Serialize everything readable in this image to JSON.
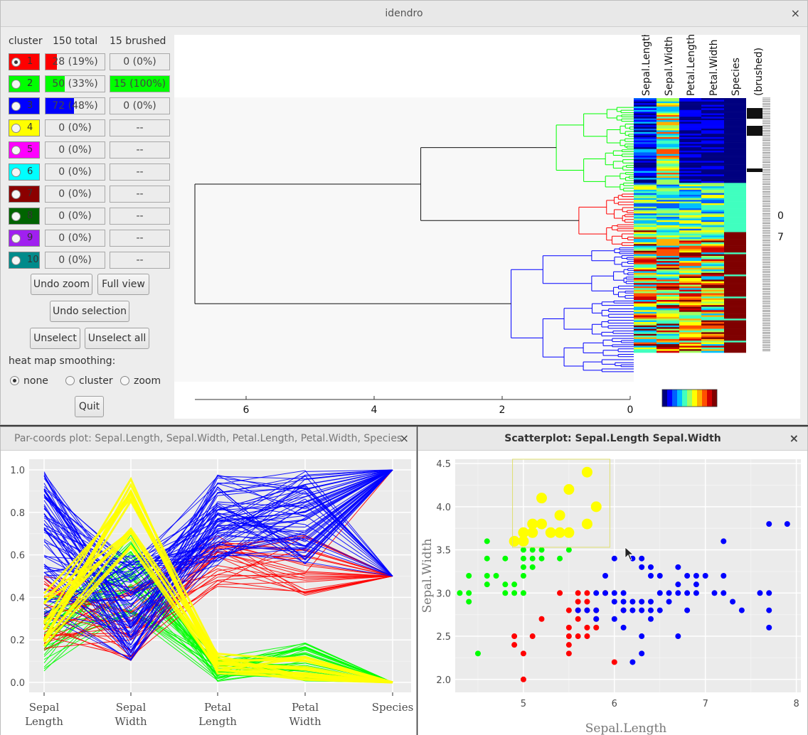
{
  "idendro": {
    "title": "idendro",
    "close": "×",
    "headers": {
      "cluster": "cluster",
      "total": "150 total",
      "brushed": "15 brushed"
    },
    "clusters": [
      {
        "num": "1",
        "color": "#ff0000",
        "total": "28 (19%)",
        "total_frac": 0.19,
        "brushed": "0 (0%)",
        "brushed_frac": 0,
        "selected": true
      },
      {
        "num": "2",
        "color": "#00ff00",
        "total": "50 (33%)",
        "total_frac": 0.33,
        "brushed": "15 (100%)",
        "brushed_frac": 1.0,
        "selected": false
      },
      {
        "num": "3",
        "color": "#0000ff",
        "total": "72 (48%)",
        "total_frac": 0.48,
        "brushed": "0 (0%)",
        "brushed_frac": 0,
        "selected": false
      },
      {
        "num": "4",
        "color": "#ffff00",
        "total": "0 (0%)",
        "total_frac": 0,
        "brushed": "--",
        "brushed_frac": 0,
        "selected": false
      },
      {
        "num": "5",
        "color": "#ff00ff",
        "total": "0 (0%)",
        "total_frac": 0,
        "brushed": "--",
        "brushed_frac": 0,
        "selected": false
      },
      {
        "num": "6",
        "color": "#00ffff",
        "total": "0 (0%)",
        "total_frac": 0,
        "brushed": "--",
        "brushed_frac": 0,
        "selected": false
      },
      {
        "num": "7",
        "color": "#8b0000",
        "total": "0 (0%)",
        "total_frac": 0,
        "brushed": "--",
        "brushed_frac": 0,
        "selected": false
      },
      {
        "num": "8",
        "color": "#006400",
        "total": "0 (0%)",
        "total_frac": 0,
        "brushed": "--",
        "brushed_frac": 0,
        "selected": false
      },
      {
        "num": "9",
        "color": "#a020f0",
        "total": "0 (0%)",
        "total_frac": 0,
        "brushed": "--",
        "brushed_frac": 0,
        "selected": false
      },
      {
        "num": "10",
        "color": "#008b8b",
        "total": "0 (0%)",
        "total_frac": 0,
        "brushed": "--",
        "brushed_frac": 0,
        "selected": false
      }
    ],
    "buttons": {
      "undo_zoom": "Undo zoom",
      "full_view": "Full view",
      "undo_selection": "Undo selection",
      "unselect": "Unselect",
      "unselect_all": "Unselect all",
      "quit": "Quit"
    },
    "smoothing": {
      "label": "heat map smoothing:",
      "options": [
        "none",
        "cluster",
        "zoom"
      ],
      "selected": "none"
    },
    "heatmap_columns": [
      "Sepal.Length",
      "Sepal.Width",
      "Petal.Length",
      "Petal.Width",
      "Species",
      "(brushed)"
    ],
    "axis_ticks": [
      "6",
      "4",
      "2",
      "0"
    ],
    "side_labels": [
      "0",
      "7"
    ]
  },
  "parcoords": {
    "title": "Par-coords plot: Sepal.Length, Sepal.Width, Petal.Length, Petal.Width, Species",
    "close": "×",
    "yticks": [
      "1.0",
      "0.8",
      "0.6",
      "0.4",
      "0.2",
      "0.0"
    ],
    "axes": [
      [
        "Sepal",
        "Length"
      ],
      [
        "Sepal",
        "Width"
      ],
      [
        "Petal",
        "Length"
      ],
      [
        "Petal",
        "Width"
      ],
      [
        "Species",
        ""
      ]
    ]
  },
  "scatter": {
    "title": "Scatterplot: Sepal.Length Sepal.Width",
    "close": "×",
    "xlabel": "Sepal.Length",
    "ylabel": "Sepal.Width",
    "xticks": [
      "5",
      "6",
      "7",
      "8"
    ],
    "yticks": [
      "4.5",
      "4.0",
      "3.5",
      "3.0",
      "2.5",
      "2.0"
    ]
  },
  "colors": {
    "cluster1": "#ff0000",
    "cluster2": "#00ff00",
    "cluster3": "#0000ff",
    "brushed": "#ffff00",
    "plotbg": "#ebebeb"
  },
  "chart_data": [
    {
      "type": "scatter",
      "title": "Scatterplot: Sepal.Length Sepal.Width",
      "xlabel": "Sepal.Length",
      "ylabel": "Sepal.Width",
      "xlim": [
        4.25,
        8.05
      ],
      "ylim": [
        1.85,
        4.55
      ],
      "grid": true,
      "series": [
        {
          "color": "#00ff00",
          "points": [
            [
              4.3,
              3.0
            ],
            [
              4.4,
              3.2
            ],
            [
              4.4,
              3.0
            ],
            [
              4.4,
              2.9
            ],
            [
              4.5,
              2.3
            ],
            [
              4.6,
              3.6
            ],
            [
              4.6,
              3.4
            ],
            [
              4.6,
              3.2
            ],
            [
              4.6,
              3.1
            ],
            [
              4.7,
              3.2
            ],
            [
              4.8,
              3.4
            ],
            [
              4.8,
              3.1
            ],
            [
              4.8,
              3.0
            ],
            [
              4.9,
              3.1
            ],
            [
              4.9,
              3.0
            ],
            [
              5.0,
              3.5
            ],
            [
              5.0,
              3.4
            ],
            [
              5.0,
              3.3
            ],
            [
              5.0,
              3.2
            ],
            [
              5.0,
              3.0
            ],
            [
              5.1,
              3.5
            ],
            [
              5.1,
              3.4
            ],
            [
              5.1,
              3.3
            ],
            [
              5.2,
              3.5
            ],
            [
              5.2,
              3.4
            ],
            [
              5.3,
              3.7
            ],
            [
              5.4,
              3.4
            ],
            [
              5.5,
              3.5
            ],
            [
              5.0,
              3.6
            ],
            [
              4.9,
              3.6
            ]
          ]
        },
        {
          "color": "#ff0000",
          "points": [
            [
              5.0,
              2.0
            ],
            [
              4.9,
              2.5
            ],
            [
              5.0,
              2.3
            ],
            [
              4.9,
              2.4
            ],
            [
              5.1,
              2.5
            ],
            [
              5.2,
              2.7
            ],
            [
              5.4,
              3.0
            ],
            [
              5.5,
              2.6
            ],
            [
              5.5,
              2.5
            ],
            [
              5.5,
              2.4
            ],
            [
              5.5,
              2.3
            ],
            [
              5.6,
              2.5
            ],
            [
              5.6,
              2.9
            ],
            [
              5.6,
              3.0
            ],
            [
              5.7,
              2.8
            ],
            [
              5.7,
              2.6
            ],
            [
              5.7,
              3.0
            ],
            [
              5.7,
              2.9
            ],
            [
              5.8,
              2.7
            ],
            [
              5.8,
              2.6
            ],
            [
              5.9,
              3.0
            ],
            [
              6.0,
              2.2
            ],
            [
              6.1,
              2.8
            ],
            [
              5.6,
              2.7
            ],
            [
              5.8,
              2.8
            ],
            [
              5.7,
              2.5
            ],
            [
              5.5,
              2.8
            ],
            [
              5.6,
              2.8
            ]
          ]
        },
        {
          "color": "#0000ff",
          "points": [
            [
              5.6,
              2.8
            ],
            [
              5.7,
              2.8
            ],
            [
              5.8,
              2.7
            ],
            [
              5.8,
              2.8
            ],
            [
              5.9,
              3.2
            ],
            [
              6.0,
              3.4
            ],
            [
              6.0,
              3.0
            ],
            [
              6.0,
              2.9
            ],
            [
              6.1,
              3.0
            ],
            [
              6.1,
              2.9
            ],
            [
              6.1,
              2.6
            ],
            [
              6.2,
              3.4
            ],
            [
              6.2,
              2.9
            ],
            [
              6.2,
              2.8
            ],
            [
              6.2,
              2.2
            ],
            [
              6.3,
              3.4
            ],
            [
              6.3,
              3.3
            ],
            [
              6.3,
              2.9
            ],
            [
              6.3,
              2.8
            ],
            [
              6.3,
              2.5
            ],
            [
              6.3,
              2.3
            ],
            [
              6.4,
              3.3
            ],
            [
              6.4,
              3.2
            ],
            [
              6.4,
              2.9
            ],
            [
              6.4,
              2.8
            ],
            [
              6.4,
              2.7
            ],
            [
              6.5,
              3.2
            ],
            [
              6.5,
              3.0
            ],
            [
              6.5,
              2.8
            ],
            [
              6.6,
              3.0
            ],
            [
              6.7,
              3.3
            ],
            [
              6.7,
              3.1
            ],
            [
              6.7,
              3.0
            ],
            [
              6.7,
              2.5
            ],
            [
              6.8,
              3.2
            ],
            [
              6.8,
              3.0
            ],
            [
              6.8,
              2.8
            ],
            [
              6.9,
              3.2
            ],
            [
              6.9,
              3.1
            ],
            [
              7.0,
              3.2
            ],
            [
              7.1,
              3.0
            ],
            [
              7.2,
              3.6
            ],
            [
              7.2,
              3.2
            ],
            [
              7.2,
              3.0
            ],
            [
              7.3,
              2.9
            ],
            [
              7.4,
              2.8
            ],
            [
              7.6,
              3.0
            ],
            [
              7.7,
              3.8
            ],
            [
              7.7,
              3.0
            ],
            [
              7.7,
              2.8
            ],
            [
              7.7,
              2.6
            ],
            [
              7.9,
              3.8
            ],
            [
              6.1,
              2.8
            ],
            [
              5.9,
              3.0
            ],
            [
              6.0,
              2.7
            ],
            [
              6.9,
              3.0
            ],
            [
              6.6,
              2.9
            ],
            [
              5.8,
              3.0
            ]
          ]
        },
        {
          "color": "#ffff00",
          "brushed": true,
          "points": [
            [
              4.9,
              3.6
            ],
            [
              5.0,
              3.6
            ],
            [
              5.1,
              3.8
            ],
            [
              5.1,
              3.7
            ],
            [
              5.2,
              4.1
            ],
            [
              5.3,
              3.7
            ],
            [
              5.4,
              3.9
            ],
            [
              5.4,
              3.7
            ],
            [
              5.5,
              4.2
            ],
            [
              5.5,
              3.7
            ],
            [
              5.7,
              4.4
            ],
            [
              5.7,
              3.8
            ],
            [
              5.8,
              4.0
            ],
            [
              5.2,
              3.8
            ],
            [
              5.0,
              3.7
            ]
          ]
        }
      ]
    }
  ]
}
